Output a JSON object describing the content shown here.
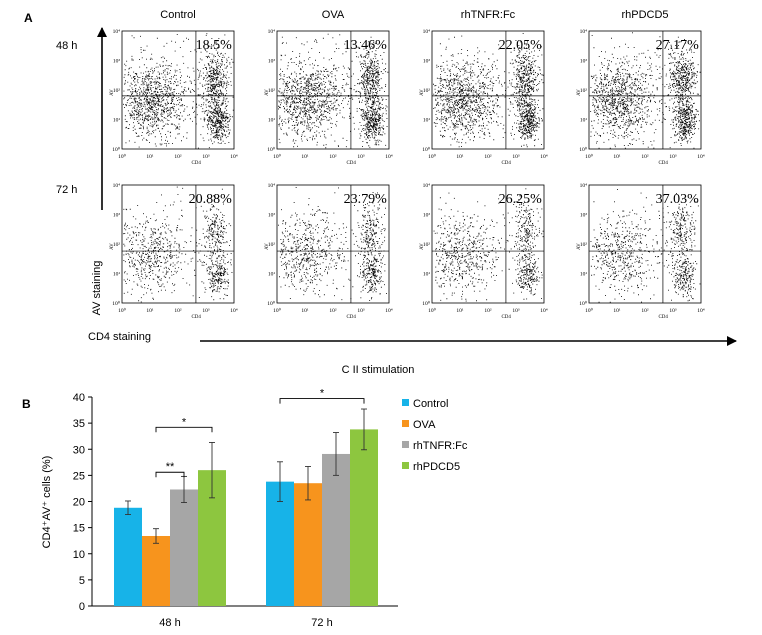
{
  "panel_a": {
    "label": "A",
    "columns": [
      "Control",
      "OVA",
      "rhTNFR:Fc",
      "rhPDCD5"
    ],
    "rows": [
      "48 h",
      "72 h"
    ],
    "percents": [
      [
        "18.5%",
        "13.46%",
        "22.05%",
        "27.17%"
      ],
      [
        "20.88%",
        "23.79%",
        "26.25%",
        "37.03%"
      ]
    ],
    "y_axis_label": "AV staining",
    "x_axis_label": "CD4 staining",
    "stimulation_label": "C II stimulation",
    "tick_labels": [
      "10⁰",
      "10¹",
      "10²",
      "10³",
      "10⁴"
    ],
    "mini_y_label": "AV",
    "mini_x_label": "CD4"
  },
  "chart_data": {
    "type": "bar",
    "panel_label": "B",
    "categories": [
      "48 h",
      "72 h"
    ],
    "series": [
      {
        "name": "Control",
        "color": "#17b3e8",
        "values": [
          18.8,
          23.8
        ],
        "errors": [
          1.3,
          3.8
        ]
      },
      {
        "name": "OVA",
        "color": "#f7941d",
        "values": [
          13.4,
          23.5
        ],
        "errors": [
          1.4,
          3.2
        ]
      },
      {
        "name": "rhTNFR:Fc",
        "color": "#a6a6a6",
        "values": [
          22.3,
          29.1
        ],
        "errors": [
          2.5,
          4.1
        ]
      },
      {
        "name": "rhPDCD5",
        "color": "#8dc63f",
        "values": [
          26.0,
          33.8
        ],
        "errors": [
          5.3,
          3.9
        ]
      }
    ],
    "ylabel": "CD4⁺AV⁺ cells (%)",
    "xlabel": "",
    "ylim": [
      0,
      40
    ],
    "yticks": [
      0,
      5,
      10,
      15,
      20,
      25,
      30,
      35,
      40
    ],
    "grid": false,
    "legend_position": "right",
    "significance": [
      {
        "category": "48 h",
        "from": "OVA",
        "to": "rhTNFR:Fc",
        "label": "**"
      },
      {
        "category": "48 h",
        "from": "OVA",
        "to": "rhPDCD5",
        "label": "*"
      },
      {
        "category": "72 h",
        "from": "Control",
        "to": "rhPDCD5",
        "label": "*"
      }
    ]
  }
}
